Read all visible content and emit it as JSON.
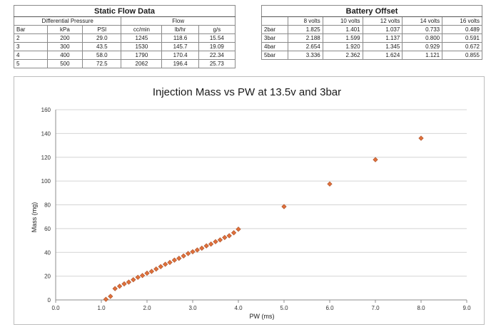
{
  "flow_table": {
    "title": "Static Flow Data",
    "group_headers": {
      "pressure": "Differential Pressure",
      "flow": "Flow"
    },
    "columns": [
      "Bar",
      "kPa",
      "PSI",
      "cc/min",
      "lb/hr",
      "g/s"
    ],
    "rows": [
      [
        "2",
        "200",
        "29.0",
        "1245",
        "118.6",
        "15.54"
      ],
      [
        "3",
        "300",
        "43.5",
        "1530",
        "145.7",
        "19.09"
      ],
      [
        "4",
        "400",
        "58.0",
        "1790",
        "170.4",
        "22.34"
      ],
      [
        "5",
        "500",
        "72.5",
        "2062",
        "196.4",
        "25.73"
      ]
    ]
  },
  "battery_table": {
    "title": "Battery Offset",
    "columns": [
      "",
      "8 volts",
      "10 volts",
      "12 volts",
      "14 volts",
      "16 volts"
    ],
    "rows": [
      [
        "2bar",
        "1.825",
        "1.401",
        "1.037",
        "0.733",
        "0.489"
      ],
      [
        "3bar",
        "2.188",
        "1.599",
        "1.137",
        "0.800",
        "0.591"
      ],
      [
        "4bar",
        "2.654",
        "1.920",
        "1.345",
        "0.929",
        "0.672"
      ],
      [
        "5bar",
        "3.336",
        "2.362",
        "1.624",
        "1.121",
        "0.855"
      ]
    ]
  },
  "chart_data": {
    "type": "scatter",
    "title": "Injection Mass vs PW at 13.5v and 3bar",
    "xlabel": "PW (ms)",
    "ylabel": "Mass (mg)",
    "xlim": [
      0,
      9
    ],
    "ylim": [
      0,
      160
    ],
    "xticks": [
      "0.0",
      "1.0",
      "2.0",
      "3.0",
      "4.0",
      "5.0",
      "6.0",
      "7.0",
      "8.0",
      "9.0"
    ],
    "yticks": [
      "0",
      "20",
      "40",
      "60",
      "80",
      "100",
      "120",
      "140",
      "160"
    ],
    "grid": "horizontal",
    "marker": "diamond",
    "marker_color": "#e0703a",
    "series": [
      {
        "name": "Mass",
        "x": [
          1.1,
          1.2,
          1.3,
          1.4,
          1.5,
          1.6,
          1.7,
          1.8,
          1.9,
          2.0,
          2.1,
          2.2,
          2.3,
          2.4,
          2.5,
          2.6,
          2.7,
          2.8,
          2.9,
          3.0,
          3.1,
          3.2,
          3.3,
          3.4,
          3.5,
          3.6,
          3.7,
          3.8,
          3.9,
          4.0,
          5.0,
          6.0,
          7.0,
          8.0
        ],
        "y": [
          0.5,
          3.0,
          9.5,
          11.5,
          13.5,
          15.0,
          17.0,
          19.0,
          20.5,
          22.5,
          24.0,
          26.0,
          28.0,
          30.0,
          31.5,
          33.5,
          35.0,
          37.0,
          39.0,
          40.5,
          42.0,
          43.5,
          45.5,
          47.0,
          49.0,
          50.5,
          52.5,
          54.0,
          56.5,
          59.5,
          78.5,
          97.5,
          118.0,
          136.0
        ]
      }
    ]
  }
}
